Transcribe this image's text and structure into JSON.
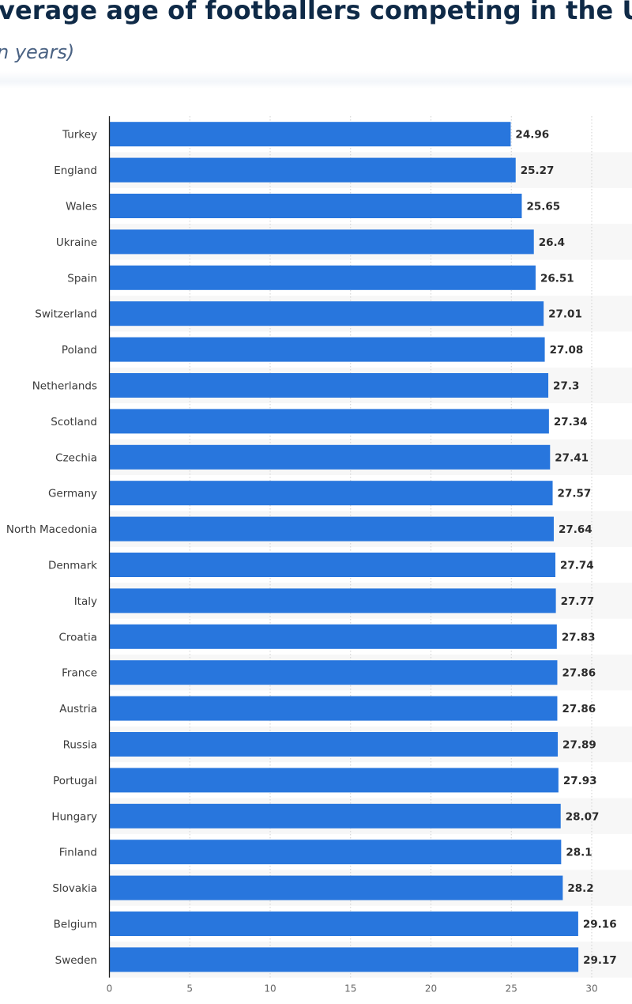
{
  "header": {
    "title": "verage age of footballers competing in the UEFA E",
    "subtitle": "n years)"
  },
  "colors": {
    "bar": "#2876dd",
    "stripe": "#f7f7f7",
    "grid": "#cfcfcf",
    "axis": "#222222"
  },
  "chart_data": {
    "type": "bar",
    "orientation": "horizontal",
    "title": "verage age of footballers competing in the UEFA E",
    "subtitle": "n years)",
    "categories": [
      "Turkey",
      "England",
      "Wales",
      "Ukraine",
      "Spain",
      "Switzerland",
      "Poland",
      "Netherlands",
      "Scotland",
      "Czechia",
      "Germany",
      "North Macedonia",
      "Denmark",
      "Italy",
      "Croatia",
      "France",
      "Austria",
      "Russia",
      "Portugal",
      "Hungary",
      "Finland",
      "Slovakia",
      "Belgium",
      "Sweden"
    ],
    "values": [
      24.96,
      25.27,
      25.65,
      26.4,
      26.51,
      27.01,
      27.08,
      27.3,
      27.34,
      27.41,
      27.57,
      27.64,
      27.74,
      27.77,
      27.83,
      27.86,
      27.86,
      27.89,
      27.93,
      28.07,
      28.1,
      28.2,
      29.16,
      29.17
    ],
    "value_labels": [
      "24.96",
      "25.27",
      "25.65",
      "26.4",
      "26.51",
      "27.01",
      "27.08",
      "27.3",
      "27.34",
      "27.41",
      "27.57",
      "27.64",
      "27.74",
      "27.77",
      "27.83",
      "27.86",
      "27.86",
      "27.89",
      "27.93",
      "28.07",
      "28.1",
      "28.2",
      "29.16",
      "29.17"
    ],
    "x_ticks": [
      0,
      5,
      10,
      15,
      20,
      25,
      30
    ],
    "x_tick_labels": [
      "0",
      "5",
      "10",
      "15",
      "20",
      "25",
      "30"
    ],
    "xlim": [
      0,
      30
    ],
    "xlabel": "",
    "ylabel": "",
    "grid": true,
    "legend": "none"
  }
}
